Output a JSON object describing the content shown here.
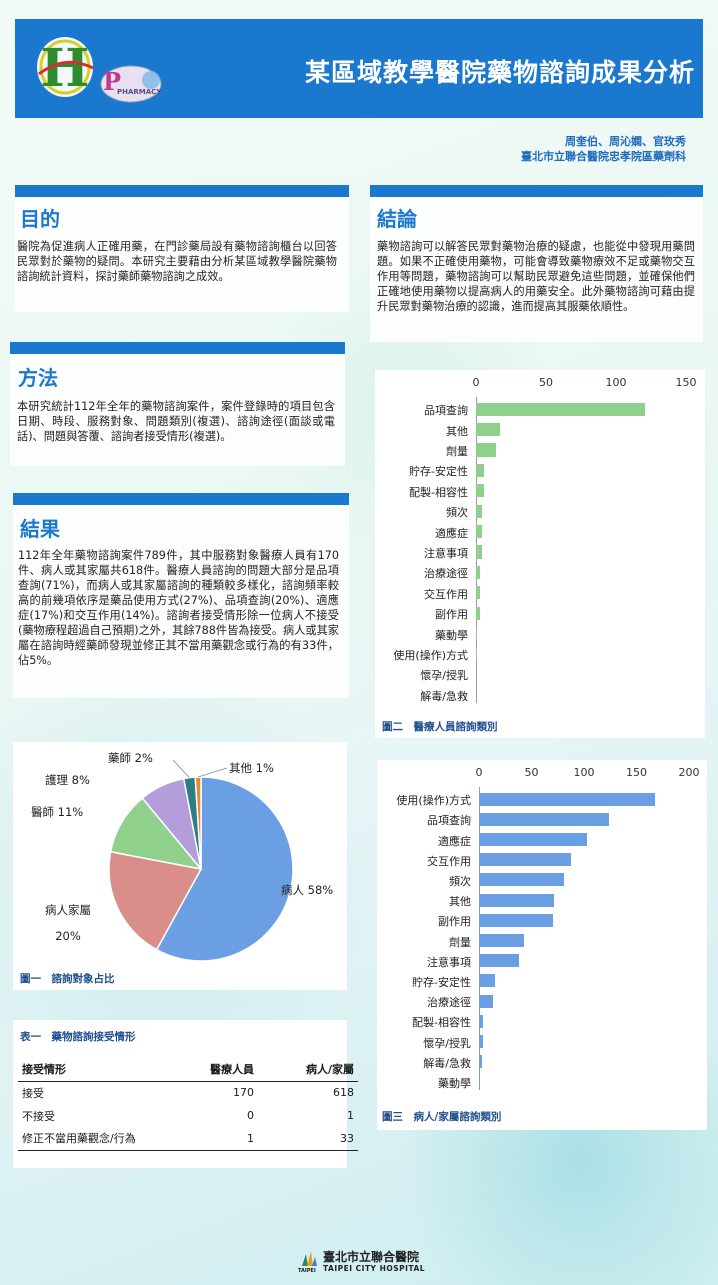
{
  "header": {
    "title": "某區域教學醫院藥物諮詢成果分析",
    "logo_text": "PHARMACY"
  },
  "authors": {
    "names": "周奎伯、周沁嫻、官玫秀",
    "affiliation": "臺北市立聯合醫院忠孝院區藥劑科"
  },
  "sections": {
    "purpose": {
      "title": "目的",
      "text": "醫院為促進病人正確用藥，在門診藥局設有藥物諮詢櫃台以回答民眾對於藥物的疑問。本研究主要藉由分析某區域教學醫院藥物諮詢統計資料，探討藥師藥物諮詢之成效。"
    },
    "method": {
      "title": "方法",
      "text": "本研究統計112年全年的藥物諮詢案件，案件登錄時的項目包含日期、時段、服務對象、問題類別(複選)、諮詢途徑(面談或電話)、問題與答覆、諮詢者接受情形(複選)。"
    },
    "results": {
      "title": "結果",
      "text": "112年全年藥物諮詢案件789件，其中服務對象醫療人員有170件、病人或其家屬共618件。醫療人員諮詢的問題大部分是品項查詢(71%)，而病人或其家屬諮詢的種類較多樣化，諮詢頻率較高的前幾項依序是藥品使用方式(27%)、品項查詢(20%)、適應症(17%)和交互作用(14%)。諮詢者接受情形除一位病人不接受(藥物療程超過自己預期)之外，其餘788件皆為接受。病人或其家屬在諮詢時經藥師發現並修正其不當用藥觀念或行為的有33件，佔5%。"
    },
    "conclusion": {
      "title": "結論",
      "text": "藥物諮詢可以解答民眾對藥物治療的疑慮，也能從中發現用藥問題。如果不正確使用藥物，可能會導致藥物療效不足或藥物交互作用等問題，藥物諮詢可以幫助民眾避免這些問題，並確保他們正確地使用藥物以提高病人的用藥安全。此外藥物諮詢可藉由提升民眾對藥物治療的認識，進而提高其服藥依順性。"
    }
  },
  "chart_data": [
    {
      "type": "pie",
      "caption": "圖一　諮詢對象占比",
      "slices": [
        {
          "label": "病人",
          "value": 58,
          "display": "病人 58%",
          "color": "#6a9fe3"
        },
        {
          "label": "病人家屬",
          "value": 20,
          "display": "病人家屬 20%",
          "color": "#d98e89"
        },
        {
          "label": "醫師",
          "value": 11,
          "display": "醫師 11%",
          "color": "#8fd08d"
        },
        {
          "label": "護理",
          "value": 8,
          "display": "護理 8%",
          "color": "#b39ddb"
        },
        {
          "label": "藥師",
          "value": 2,
          "display": "藥師 2%",
          "color": "#2e7d82"
        },
        {
          "label": "其他",
          "value": 1,
          "display": "其他 1%",
          "color": "#e08a3c"
        }
      ]
    },
    {
      "type": "bar",
      "orientation": "horizontal",
      "caption": "圖二　醫療人員諮詢類別",
      "color": "#8fd08d",
      "xlim": [
        0,
        150
      ],
      "ticks": [
        0,
        50,
        100,
        150
      ],
      "categories": [
        "品項查詢",
        "其他",
        "劑量",
        "貯存-安定性",
        "配製-相容性",
        "頻次",
        "適應症",
        "注意事項",
        "治療途徑",
        "交互作用",
        "副作用",
        "藥動學",
        "使用(操作)方式",
        "懷孕/授乳",
        "解毒/急救"
      ],
      "values": [
        121,
        17,
        14,
        6,
        6,
        4,
        4,
        4,
        3,
        3,
        3,
        1,
        1,
        0,
        0
      ]
    },
    {
      "type": "bar",
      "orientation": "horizontal",
      "caption": "圖三　病人/家屬諮詢類別",
      "color": "#6a9fe3",
      "xlim": [
        0,
        200
      ],
      "ticks": [
        0,
        50,
        100,
        150,
        200
      ],
      "categories": [
        "使用(操作)方式",
        "品項查詢",
        "適應症",
        "交互作用",
        "頻次",
        "其他",
        "副作用",
        "劑量",
        "注意事項",
        "貯存-安定性",
        "治療途徑",
        "配製-相容性",
        "懷孕/授乳",
        "解毒/急救",
        "藥動學"
      ],
      "values": [
        168,
        124,
        103,
        88,
        81,
        71,
        70,
        43,
        38,
        15,
        13,
        4,
        4,
        3,
        1
      ]
    }
  ],
  "table": {
    "caption": "表一　藥物諮詢接受情形",
    "headers": [
      "接受情形",
      "醫療人員",
      "病人/家屬"
    ],
    "rows": [
      [
        "接受",
        "170",
        "618"
      ],
      [
        "不接受",
        "0",
        "1"
      ],
      [
        "修正不當用藥觀念/行為",
        "1",
        "33"
      ]
    ]
  },
  "footer": {
    "name_cn": "臺北市立聯合醫院",
    "name_en": "TAIPEI CITY HOSPITAL",
    "mark": "TAIPEI"
  }
}
